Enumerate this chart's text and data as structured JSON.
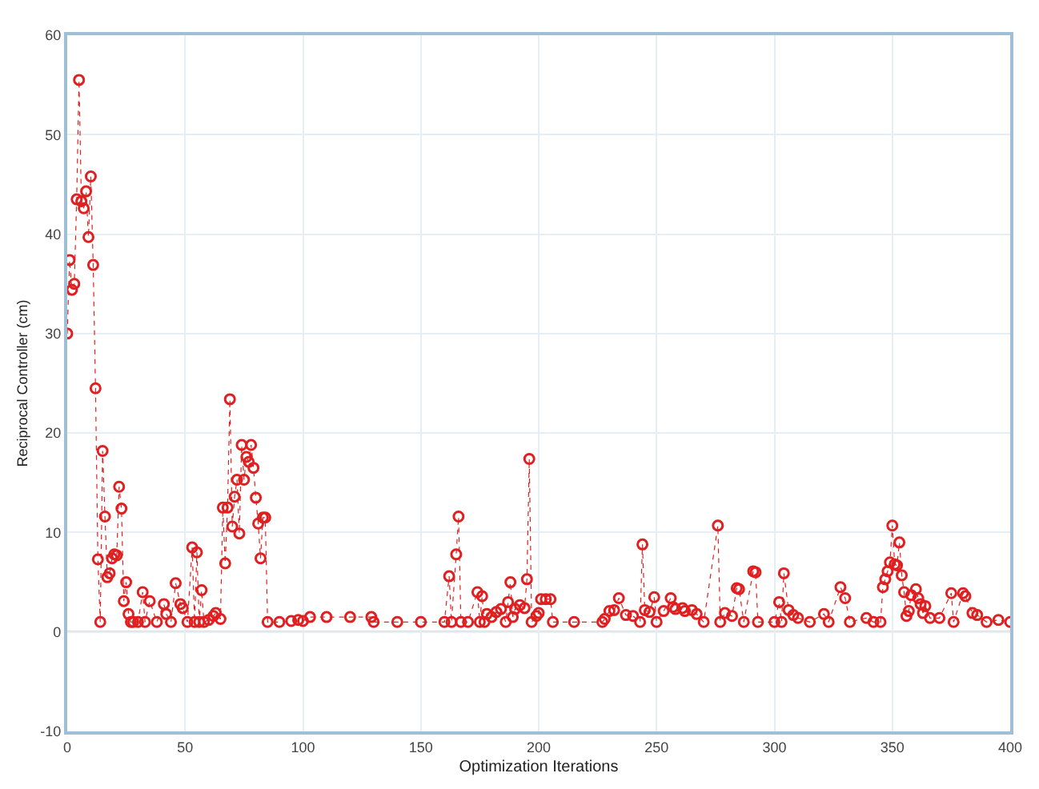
{
  "chart_data": {
    "type": "line",
    "xlabel": "Optimization Iterations",
    "ylabel": "Reciprocal Controller (cm)",
    "xlim": [
      0,
      400
    ],
    "xticks": [
      0,
      50,
      100,
      150,
      200,
      250,
      300,
      350,
      400
    ],
    "ylim": [
      -10,
      60
    ],
    "yticks": [
      -10,
      0,
      10,
      20,
      30,
      40,
      50,
      60
    ],
    "grid": true,
    "marker": "circle",
    "line_style": "dotted",
    "series": [
      {
        "color": "#e02020",
        "x": [
          0,
          1,
          2,
          3,
          4,
          5,
          6,
          7,
          8,
          9,
          10,
          11,
          12,
          13,
          14,
          15,
          16,
          17,
          18,
          19,
          20,
          21,
          22,
          23,
          24,
          25,
          26,
          27,
          28,
          30,
          32,
          33,
          35,
          38,
          41,
          42,
          44,
          46,
          48,
          49,
          51,
          53,
          54,
          55,
          56,
          57,
          58,
          60,
          62,
          63,
          65,
          66,
          67,
          68,
          69,
          70,
          71,
          72,
          73,
          74,
          75,
          76,
          77,
          78,
          79,
          80,
          81,
          82,
          83,
          84,
          85,
          90,
          95,
          98,
          100,
          103,
          110,
          120,
          129,
          130,
          140,
          150,
          160,
          162,
          163,
          165,
          166,
          167,
          170,
          174,
          175,
          176,
          177,
          178,
          180,
          182,
          184,
          186,
          187,
          188,
          189,
          190,
          192,
          194,
          195,
          196,
          197,
          199,
          200,
          201,
          203,
          205,
          206,
          215,
          227,
          228,
          230,
          232,
          234,
          237,
          240,
          243,
          244,
          245,
          247,
          249,
          250,
          253,
          256,
          257,
          258,
          261,
          262,
          265,
          267,
          270,
          276,
          277,
          279,
          282,
          284,
          285,
          287,
          291,
          292,
          293,
          300,
          302,
          303,
          304,
          306,
          308,
          310,
          315,
          321,
          323,
          328,
          330,
          332,
          339,
          342,
          345,
          346,
          347,
          348,
          349,
          350,
          351,
          352,
          353,
          354,
          355,
          356,
          357,
          358,
          360,
          361,
          362,
          363,
          364,
          366,
          370,
          375,
          376,
          380,
          381,
          384,
          386,
          390,
          395,
          400
        ],
        "values": [
          30,
          37.4,
          34.4,
          35.0,
          43.5,
          55.5,
          43.3,
          42.6,
          44.3,
          39.7,
          45.8,
          36.9,
          24.5,
          7.3,
          1.0,
          18.2,
          11.6,
          5.5,
          5.9,
          7.4,
          7.8,
          7.7,
          14.6,
          12.4,
          3.1,
          5.0,
          1.8,
          1,
          1,
          1,
          4.0,
          1,
          3.1,
          1,
          2.8,
          1.8,
          1,
          4.9,
          2.8,
          2.4,
          1,
          8.5,
          1,
          8.0,
          1,
          4.2,
          1,
          1.2,
          1.6,
          1.9,
          1.3,
          12.5,
          6.9,
          12.5,
          23.4,
          10.6,
          13.6,
          15.3,
          9.9,
          18.8,
          15.3,
          17.6,
          17.1,
          18.8,
          16.5,
          13.5,
          10.9,
          7.4,
          11.5,
          11.5,
          1.0,
          1,
          1.1,
          1.2,
          1.1,
          1.5,
          1.5,
          1.5,
          1.5,
          1,
          1,
          1,
          1,
          5.6,
          1,
          7.8,
          11.6,
          1,
          1,
          4.0,
          1,
          3.6,
          1,
          1.8,
          1.5,
          2.0,
          2.3,
          1,
          3.0,
          5.0,
          1.5,
          2.3,
          2.7,
          2.4,
          5.3,
          17.4,
          1,
          1.6,
          1.9,
          3.3,
          3.3,
          3.3,
          1,
          1,
          1,
          1.3,
          2.1,
          2.2,
          3.4,
          1.7,
          1.6,
          1,
          8.8,
          2.2,
          2.0,
          3.5,
          1,
          2.1,
          3.4,
          2.5,
          2.3,
          2.4,
          2.1,
          2.2,
          1.8,
          1,
          10.7,
          1,
          1.9,
          1.6,
          4.4,
          4.3,
          1,
          6.1,
          6.0,
          1,
          1,
          3.0,
          1,
          5.9,
          2.2,
          1.7,
          1.4,
          1,
          1.8,
          1,
          4.5,
          3.4,
          1,
          1.4,
          1,
          1,
          4.5,
          5.3,
          6.1,
          7.0,
          10.7,
          6.8,
          6.7,
          9.0,
          5.7,
          4.0,
          1.6,
          2.1,
          3.7,
          4.3,
          3.4,
          2.8,
          1.9,
          2.6,
          1.4,
          1.4,
          3.9,
          1,
          3.9,
          3.6,
          1.9,
          1.7,
          1,
          1.2,
          1
        ]
      }
    ]
  }
}
